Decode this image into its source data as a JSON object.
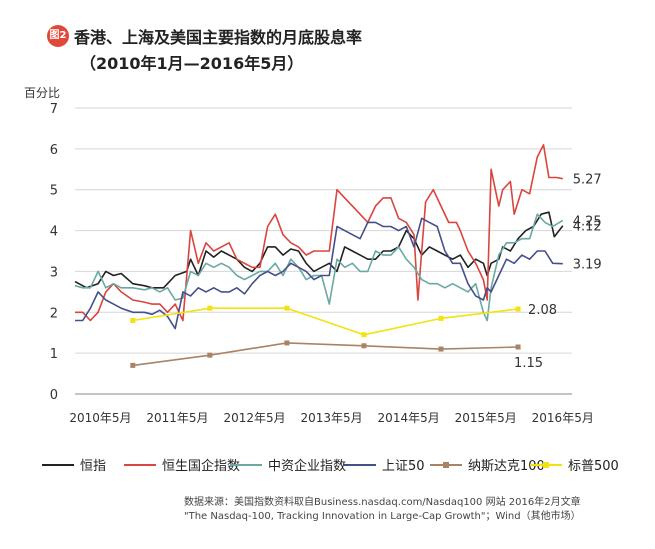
{
  "header": {
    "badge": "图2",
    "title": "香港、上海及美国主要指数的月底股息率",
    "subtitle": "（2010年1月—2016年5月）"
  },
  "source": {
    "line1": "数据来源：美国指数资料取自Business.nasdaq.com/Nasdaq100 网站 2016年2月文章",
    "line2": "\"The Nasdaq-100, Tracking Innovation in Large-Cap Growth\"；Wind（其他市场）"
  },
  "chart_data": {
    "type": "line",
    "ylabel": "百分比",
    "ylim": [
      0,
      7
    ],
    "yticks": [
      "0",
      "1",
      "2",
      "3",
      "4",
      "5",
      "6",
      "7"
    ],
    "xlim": [
      2010.0,
      2016.45
    ],
    "xticks": [
      {
        "value": 2010.33,
        "label": "2010年5月"
      },
      {
        "value": 2011.33,
        "label": "2011年5月"
      },
      {
        "value": 2012.33,
        "label": "2012年5月"
      },
      {
        "value": 2013.33,
        "label": "2013年5月"
      },
      {
        "value": 2014.33,
        "label": "2014年5月"
      },
      {
        "value": 2015.33,
        "label": "2015年5月"
      },
      {
        "value": 2016.33,
        "label": "2016年5月"
      }
    ],
    "grid": true,
    "legend": "bottom",
    "series": [
      {
        "name": "恒指",
        "color": "#222222",
        "marker": "none",
        "points": [
          [
            2010.0,
            2.75
          ],
          [
            2010.15,
            2.6
          ],
          [
            2010.3,
            2.7
          ],
          [
            2010.4,
            3.0
          ],
          [
            2010.5,
            2.9
          ],
          [
            2010.6,
            2.95
          ],
          [
            2010.75,
            2.7
          ],
          [
            2010.9,
            2.65
          ],
          [
            2011.0,
            2.6
          ],
          [
            2011.15,
            2.6
          ],
          [
            2011.2,
            2.7
          ],
          [
            2011.3,
            2.9
          ],
          [
            2011.45,
            3.0
          ],
          [
            2011.5,
            3.3
          ],
          [
            2011.6,
            2.9
          ],
          [
            2011.7,
            3.5
          ],
          [
            2011.8,
            3.35
          ],
          [
            2011.9,
            3.5
          ],
          [
            2012.0,
            3.4
          ],
          [
            2012.1,
            3.3
          ],
          [
            2012.2,
            3.1
          ],
          [
            2012.3,
            3.0
          ],
          [
            2012.4,
            3.2
          ],
          [
            2012.5,
            3.6
          ],
          [
            2012.6,
            3.6
          ],
          [
            2012.7,
            3.4
          ],
          [
            2012.8,
            3.55
          ],
          [
            2012.9,
            3.5
          ],
          [
            2013.0,
            3.2
          ],
          [
            2013.1,
            3.0
          ],
          [
            2013.2,
            3.1
          ],
          [
            2013.3,
            3.2
          ],
          [
            2013.4,
            3.0
          ],
          [
            2013.5,
            3.6
          ],
          [
            2013.6,
            3.5
          ],
          [
            2013.7,
            3.4
          ],
          [
            2013.8,
            3.3
          ],
          [
            2013.9,
            3.3
          ],
          [
            2014.0,
            3.5
          ],
          [
            2014.1,
            3.5
          ],
          [
            2014.2,
            3.6
          ],
          [
            2014.3,
            4.0
          ],
          [
            2014.4,
            3.8
          ],
          [
            2014.5,
            3.4
          ],
          [
            2014.6,
            3.6
          ],
          [
            2014.7,
            3.5
          ],
          [
            2014.8,
            3.4
          ],
          [
            2014.9,
            3.3
          ],
          [
            2015.0,
            3.4
          ],
          [
            2015.1,
            3.1
          ],
          [
            2015.2,
            3.3
          ],
          [
            2015.3,
            3.2
          ],
          [
            2015.35,
            2.9
          ],
          [
            2015.4,
            3.2
          ],
          [
            2015.5,
            3.3
          ],
          [
            2015.55,
            3.6
          ],
          [
            2015.65,
            3.5
          ],
          [
            2015.75,
            3.8
          ],
          [
            2015.85,
            4.0
          ],
          [
            2015.95,
            4.1
          ],
          [
            2016.05,
            4.4
          ],
          [
            2016.15,
            4.45
          ],
          [
            2016.22,
            3.85
          ],
          [
            2016.33,
            4.12
          ]
        ]
      },
      {
        "name": "恒生国企指数",
        "color": "#d9453f",
        "marker": "none",
        "points": [
          [
            2010.0,
            2.0
          ],
          [
            2010.1,
            2.0
          ],
          [
            2010.2,
            1.8
          ],
          [
            2010.3,
            2.0
          ],
          [
            2010.4,
            2.5
          ],
          [
            2010.5,
            2.7
          ],
          [
            2010.6,
            2.5
          ],
          [
            2010.75,
            2.3
          ],
          [
            2010.9,
            2.25
          ],
          [
            2011.0,
            2.2
          ],
          [
            2011.1,
            2.2
          ],
          [
            2011.2,
            2.0
          ],
          [
            2011.3,
            2.2
          ],
          [
            2011.4,
            1.8
          ],
          [
            2011.5,
            4.0
          ],
          [
            2011.6,
            3.2
          ],
          [
            2011.7,
            3.7
          ],
          [
            2011.8,
            3.5
          ],
          [
            2011.9,
            3.6
          ],
          [
            2012.0,
            3.7
          ],
          [
            2012.1,
            3.3
          ],
          [
            2012.2,
            3.2
          ],
          [
            2012.3,
            3.1
          ],
          [
            2012.4,
            3.1
          ],
          [
            2012.5,
            4.1
          ],
          [
            2012.6,
            4.4
          ],
          [
            2012.7,
            3.9
          ],
          [
            2012.8,
            3.7
          ],
          [
            2012.9,
            3.6
          ],
          [
            2013.0,
            3.4
          ],
          [
            2013.1,
            3.5
          ],
          [
            2013.2,
            3.5
          ],
          [
            2013.3,
            3.5
          ],
          [
            2013.4,
            5.0
          ],
          [
            2013.5,
            4.8
          ],
          [
            2013.6,
            4.6
          ],
          [
            2013.7,
            4.4
          ],
          [
            2013.8,
            4.2
          ],
          [
            2013.9,
            4.6
          ],
          [
            2014.0,
            4.8
          ],
          [
            2014.1,
            4.8
          ],
          [
            2014.2,
            4.3
          ],
          [
            2014.3,
            4.2
          ],
          [
            2014.4,
            3.9
          ],
          [
            2014.45,
            2.3
          ],
          [
            2014.55,
            4.7
          ],
          [
            2014.65,
            5.0
          ],
          [
            2014.75,
            4.6
          ],
          [
            2014.85,
            4.2
          ],
          [
            2014.95,
            4.2
          ],
          [
            2015.0,
            4.0
          ],
          [
            2015.1,
            3.5
          ],
          [
            2015.2,
            3.2
          ],
          [
            2015.3,
            2.8
          ],
          [
            2015.35,
            2.3
          ],
          [
            2015.4,
            5.5
          ],
          [
            2015.5,
            4.6
          ],
          [
            2015.55,
            5.0
          ],
          [
            2015.65,
            5.2
          ],
          [
            2015.7,
            4.4
          ],
          [
            2015.8,
            5.0
          ],
          [
            2015.9,
            4.9
          ],
          [
            2016.0,
            5.8
          ],
          [
            2016.08,
            6.1
          ],
          [
            2016.15,
            5.3
          ],
          [
            2016.25,
            5.3
          ],
          [
            2016.33,
            5.27
          ]
        ]
      },
      {
        "name": "中资企业指数",
        "color": "#6aa9a3",
        "marker": "none",
        "points": [
          [
            2010.0,
            2.65
          ],
          [
            2010.1,
            2.6
          ],
          [
            2010.2,
            2.6
          ],
          [
            2010.3,
            3.0
          ],
          [
            2010.4,
            2.6
          ],
          [
            2010.5,
            2.7
          ],
          [
            2010.6,
            2.6
          ],
          [
            2010.75,
            2.6
          ],
          [
            2010.9,
            2.55
          ],
          [
            2011.0,
            2.6
          ],
          [
            2011.1,
            2.5
          ],
          [
            2011.2,
            2.6
          ],
          [
            2011.3,
            2.3
          ],
          [
            2011.4,
            2.35
          ],
          [
            2011.5,
            3.0
          ],
          [
            2011.6,
            2.9
          ],
          [
            2011.7,
            3.2
          ],
          [
            2011.8,
            3.1
          ],
          [
            2011.9,
            3.2
          ],
          [
            2012.0,
            3.1
          ],
          [
            2012.1,
            2.9
          ],
          [
            2012.2,
            2.8
          ],
          [
            2012.3,
            2.9
          ],
          [
            2012.4,
            3.0
          ],
          [
            2012.5,
            3.0
          ],
          [
            2012.6,
            3.2
          ],
          [
            2012.7,
            2.9
          ],
          [
            2012.8,
            3.3
          ],
          [
            2012.9,
            3.1
          ],
          [
            2013.0,
            2.8
          ],
          [
            2013.1,
            2.9
          ],
          [
            2013.2,
            2.9
          ],
          [
            2013.3,
            2.2
          ],
          [
            2013.4,
            3.3
          ],
          [
            2013.5,
            3.1
          ],
          [
            2013.6,
            3.2
          ],
          [
            2013.7,
            3.0
          ],
          [
            2013.8,
            3.0
          ],
          [
            2013.9,
            3.5
          ],
          [
            2014.0,
            3.4
          ],
          [
            2014.1,
            3.4
          ],
          [
            2014.2,
            3.6
          ],
          [
            2014.3,
            3.3
          ],
          [
            2014.4,
            3.1
          ],
          [
            2014.5,
            2.8
          ],
          [
            2014.6,
            2.7
          ],
          [
            2014.7,
            2.7
          ],
          [
            2014.8,
            2.6
          ],
          [
            2014.9,
            2.7
          ],
          [
            2015.0,
            2.6
          ],
          [
            2015.1,
            2.5
          ],
          [
            2015.2,
            2.7
          ],
          [
            2015.3,
            2.0
          ],
          [
            2015.35,
            1.8
          ],
          [
            2015.4,
            2.6
          ],
          [
            2015.5,
            3.4
          ],
          [
            2015.6,
            3.7
          ],
          [
            2015.7,
            3.7
          ],
          [
            2015.8,
            3.8
          ],
          [
            2015.9,
            3.8
          ],
          [
            2016.0,
            4.4
          ],
          [
            2016.1,
            4.2
          ],
          [
            2016.2,
            4.1
          ],
          [
            2016.33,
            4.25
          ]
        ]
      },
      {
        "name": "上证50",
        "color": "#45508a",
        "marker": "none",
        "points": [
          [
            2010.0,
            1.8
          ],
          [
            2010.1,
            1.8
          ],
          [
            2010.2,
            2.1
          ],
          [
            2010.3,
            2.5
          ],
          [
            2010.4,
            2.3
          ],
          [
            2010.5,
            2.2
          ],
          [
            2010.6,
            2.1
          ],
          [
            2010.75,
            2.0
          ],
          [
            2010.9,
            2.0
          ],
          [
            2011.0,
            1.95
          ],
          [
            2011.1,
            2.05
          ],
          [
            2011.2,
            1.9
          ],
          [
            2011.3,
            1.6
          ],
          [
            2011.4,
            2.5
          ],
          [
            2011.5,
            2.4
          ],
          [
            2011.6,
            2.6
          ],
          [
            2011.7,
            2.5
          ],
          [
            2011.8,
            2.6
          ],
          [
            2011.9,
            2.5
          ],
          [
            2012.0,
            2.5
          ],
          [
            2012.1,
            2.6
          ],
          [
            2012.2,
            2.45
          ],
          [
            2012.3,
            2.7
          ],
          [
            2012.4,
            2.9
          ],
          [
            2012.5,
            3.0
          ],
          [
            2012.6,
            2.9
          ],
          [
            2012.7,
            3.0
          ],
          [
            2012.8,
            3.2
          ],
          [
            2012.9,
            3.1
          ],
          [
            2013.0,
            3.0
          ],
          [
            2013.1,
            2.8
          ],
          [
            2013.2,
            2.9
          ],
          [
            2013.3,
            2.9
          ],
          [
            2013.4,
            4.1
          ],
          [
            2013.5,
            4.0
          ],
          [
            2013.6,
            3.9
          ],
          [
            2013.7,
            3.8
          ],
          [
            2013.8,
            4.2
          ],
          [
            2013.9,
            4.2
          ],
          [
            2014.0,
            4.1
          ],
          [
            2014.1,
            4.1
          ],
          [
            2014.2,
            4.0
          ],
          [
            2014.3,
            4.1
          ],
          [
            2014.4,
            3.6
          ],
          [
            2014.5,
            4.3
          ],
          [
            2014.6,
            4.2
          ],
          [
            2014.7,
            4.1
          ],
          [
            2014.8,
            3.5
          ],
          [
            2014.9,
            3.2
          ],
          [
            2015.0,
            3.2
          ],
          [
            2015.1,
            2.7
          ],
          [
            2015.2,
            2.4
          ],
          [
            2015.3,
            2.3
          ],
          [
            2015.35,
            2.6
          ],
          [
            2015.4,
            2.5
          ],
          [
            2015.5,
            2.9
          ],
          [
            2015.6,
            3.3
          ],
          [
            2015.7,
            3.2
          ],
          [
            2015.8,
            3.4
          ],
          [
            2015.9,
            3.3
          ],
          [
            2016.0,
            3.5
          ],
          [
            2016.1,
            3.5
          ],
          [
            2016.2,
            3.2
          ],
          [
            2016.33,
            3.19
          ]
        ]
      },
      {
        "name": "纳斯达克100",
        "color": "#a98366",
        "marker": "square",
        "points": [
          [
            2010.75,
            0.7
          ],
          [
            2011.75,
            0.95
          ],
          [
            2012.75,
            1.25
          ],
          [
            2013.75,
            1.18
          ],
          [
            2014.75,
            1.1
          ],
          [
            2015.75,
            1.15
          ]
        ]
      },
      {
        "name": "标普500",
        "color": "#f2e30e",
        "marker": "square",
        "points": [
          [
            2010.75,
            1.8
          ],
          [
            2011.75,
            2.1
          ],
          [
            2012.75,
            2.1
          ],
          [
            2013.75,
            1.45
          ],
          [
            2014.75,
            1.85
          ],
          [
            2015.75,
            2.08
          ]
        ]
      }
    ],
    "annotations": [
      {
        "text": "5.27",
        "series": "恒生国企指数"
      },
      {
        "text": "4.25",
        "series": "中资企业指数"
      },
      {
        "text": "4.12",
        "series": "恒指"
      },
      {
        "text": "3.19",
        "series": "上证50"
      },
      {
        "text": "2.08",
        "series": "标普500"
      },
      {
        "text": "1.15",
        "series": "纳斯达克100"
      }
    ]
  }
}
